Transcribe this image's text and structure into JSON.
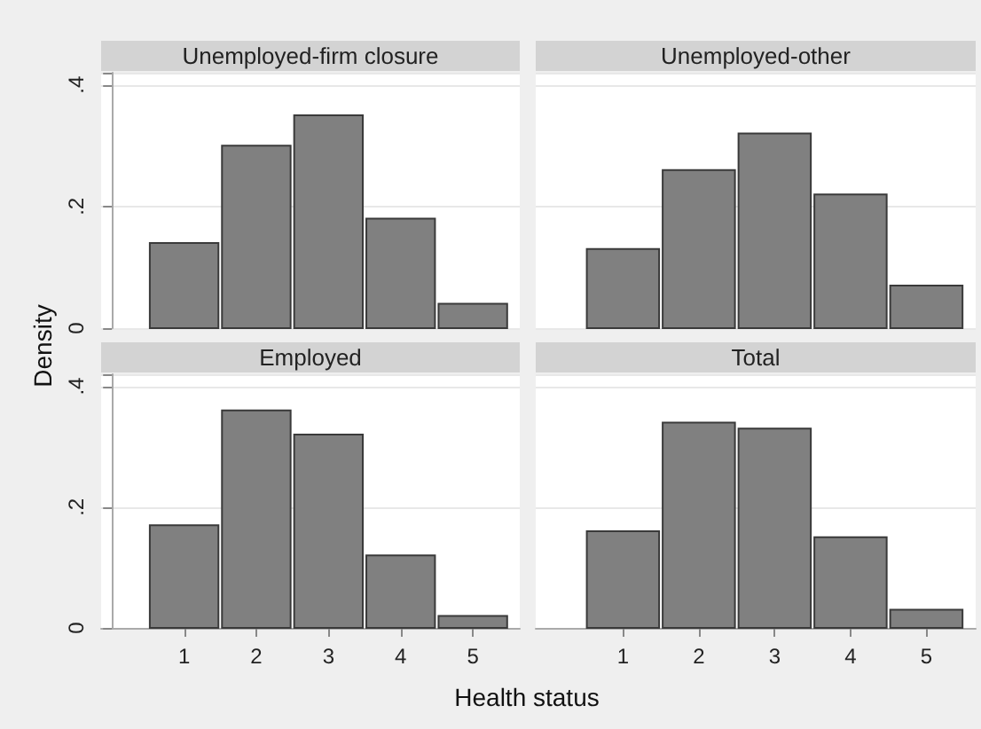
{
  "chart_data": [
    {
      "type": "histogram",
      "title": "Unemployed-firm closure",
      "ylabel": "Density",
      "bins": [
        0.5,
        1.5,
        2.5,
        3.5,
        4.5,
        5.5
      ],
      "values": [
        0.14,
        0.3,
        0.35,
        0.18,
        0.04
      ],
      "color": "#808080",
      "xlim": [
        -0.15,
        5.65
      ],
      "xticks": [
        1,
        2,
        3,
        4,
        5
      ],
      "ylim": [
        0,
        0.42
      ],
      "yticks": [
        0,
        {
          "value": 0.2,
          "label": ".2"
        },
        {
          "value": 0.4,
          "label": ".4"
        }
      ],
      "grid": "y",
      "tick_labels": "y"
    },
    {
      "type": "histogram",
      "title": "Unemployed-other",
      "bins": [
        0.5,
        1.5,
        2.5,
        3.5,
        4.5,
        5.5
      ],
      "values": [
        0.13,
        0.26,
        0.32,
        0.22,
        0.07
      ],
      "color": "#808080",
      "xlim": [
        -0.15,
        5.65
      ],
      "xticks": [
        1,
        2,
        3,
        4,
        5
      ],
      "ylim": [
        0,
        0.42
      ],
      "yticks": [
        {
          "value": 0,
          "label": null
        },
        {
          "value": 0.2,
          "label": null
        },
        {
          "value": 0.4,
          "label": null
        }
      ],
      "grid": "y",
      "tick_labels": false
    },
    {
      "type": "histogram",
      "title": "Employed",
      "xlabel": "Health status",
      "bins": [
        0.5,
        1.5,
        2.5,
        3.5,
        4.5,
        5.5
      ],
      "values": [
        0.17,
        0.36,
        0.32,
        0.12,
        0.02
      ],
      "color": "#808080",
      "xlim": [
        -0.15,
        5.65
      ],
      "xticks": [
        1,
        2,
        3,
        4,
        5
      ],
      "ylim": [
        0,
        0.42
      ],
      "yticks": [
        0,
        {
          "value": 0.2,
          "label": ".2"
        },
        {
          "value": 0.4,
          "label": ".4"
        }
      ],
      "grid": "y"
    },
    {
      "type": "histogram",
      "title": "Total",
      "bins": [
        0.5,
        1.5,
        2.5,
        3.5,
        4.5,
        5.5
      ],
      "values": [
        0.16,
        0.34,
        0.33,
        0.15,
        0.03
      ],
      "color": "#808080",
      "xlim": [
        -0.15,
        5.65
      ],
      "xticks": [
        1,
        2,
        3,
        4,
        5
      ],
      "ylim": [
        0,
        0.42
      ],
      "yticks": [
        {
          "value": 0,
          "label": null
        },
        {
          "value": 0.2,
          "label": null
        },
        {
          "value": 0.4,
          "label": null
        }
      ],
      "grid": "y",
      "tick_labels": "x"
    }
  ]
}
